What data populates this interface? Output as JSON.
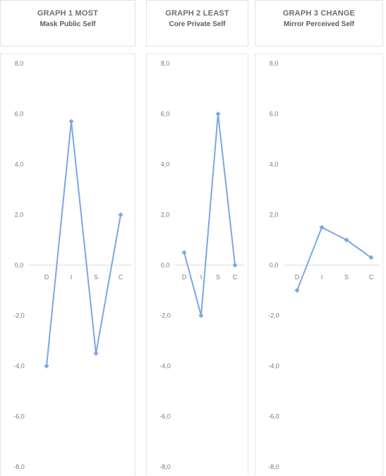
{
  "charts": [
    {
      "title": "GRAPH 1 MOST",
      "subtitle": "Mask Public Self"
    },
    {
      "title": "GRAPH 2 LEAST",
      "subtitle": "Core Private Self"
    },
    {
      "title": "GRAPH 3 CHANGE",
      "subtitle": "Mirror Perceived Self"
    }
  ],
  "colors": {
    "line": "#7aa7e6",
    "axis_text": "#7a7a7a",
    "zero_line": "#d8d8d8"
  },
  "chart_data": [
    {
      "type": "line",
      "title": "GRAPH 1 MOST",
      "subtitle": "Mask Public Self",
      "categories": [
        "D",
        "I",
        "S",
        "C"
      ],
      "values": [
        -4.0,
        5.7,
        -3.5,
        2.0
      ],
      "yticks": [
        "8,0",
        "6,0",
        "4,0",
        "2,0",
        "0,0",
        "-2,0",
        "-4,0",
        "-6,0",
        "-8,0"
      ],
      "ylim": [
        -8,
        8
      ],
      "grid": false
    },
    {
      "type": "line",
      "title": "GRAPH 2 LEAST",
      "subtitle": "Core Private Self",
      "categories": [
        "D",
        "I",
        "S",
        "C"
      ],
      "values": [
        0.5,
        -2.0,
        6.0,
        0.0
      ],
      "yticks": [
        "8,0",
        "6,0",
        "4,0",
        "2,0",
        "0,0",
        "-2,0",
        "-4,0",
        "-6,0",
        "-8,0"
      ],
      "ylim": [
        -8,
        8
      ],
      "grid": false
    },
    {
      "type": "line",
      "title": "GRAPH 3 CHANGE",
      "subtitle": "Mirror Perceived Self",
      "categories": [
        "D",
        "I",
        "S",
        "C"
      ],
      "values": [
        -1.0,
        1.5,
        1.0,
        0.3
      ],
      "yticks": [
        "8,0",
        "6,0",
        "4,0",
        "2,0",
        "0,0",
        "-2,0",
        "-4,0",
        "-6,0",
        "-8,0"
      ],
      "ylim": [
        -8,
        8
      ],
      "grid": false
    }
  ]
}
